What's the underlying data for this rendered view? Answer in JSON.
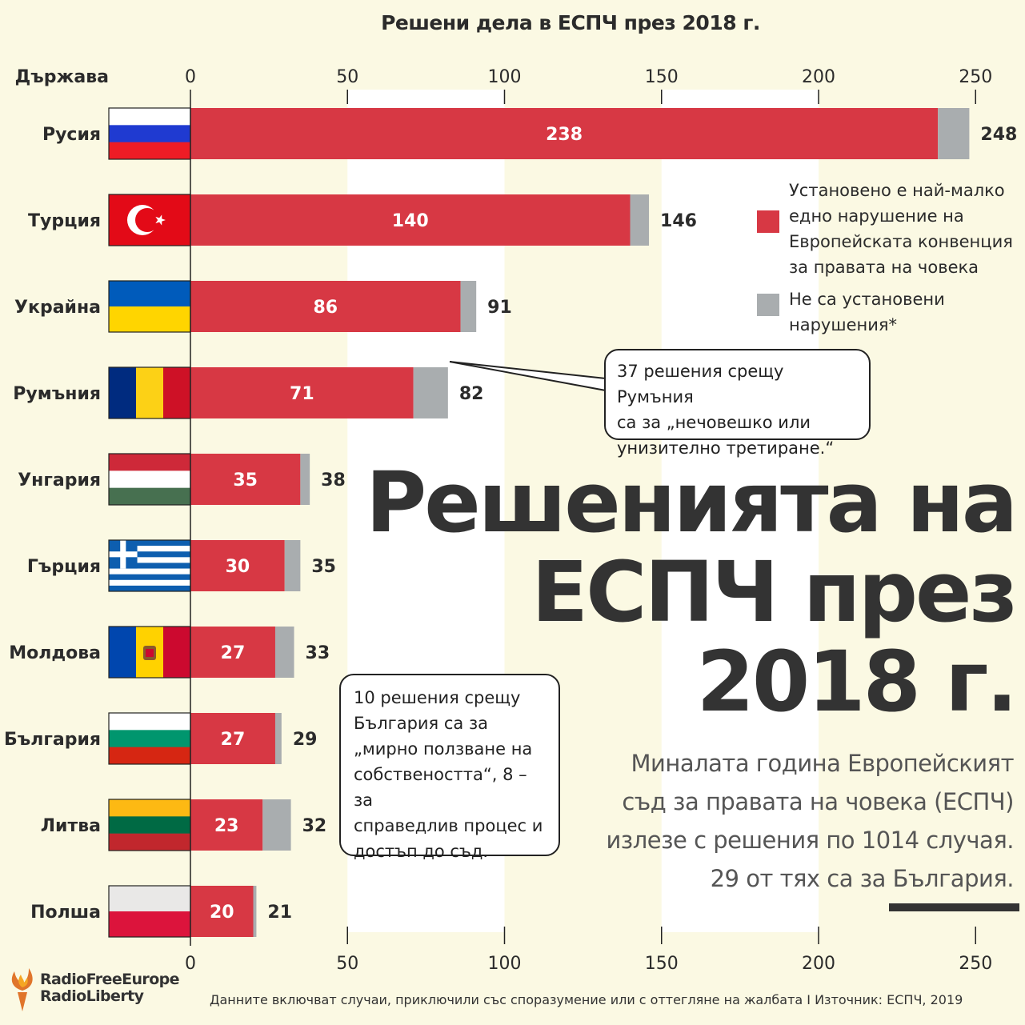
{
  "chart_data": {
    "type": "bar",
    "orientation": "horizontal",
    "stacked": true,
    "title": "Решени дела в ЕСПЧ през 2018 г.",
    "category_axis_label": "Държава",
    "categories": [
      "Русия",
      "Турция",
      "Украйна",
      "Румъния",
      "Унгария",
      "Гърция",
      "Молдова",
      "България",
      "Литва",
      "Полша"
    ],
    "series": [
      {
        "name": "Установено е най-малко едно нарушение на Европейската конвенция за правата на човека",
        "color": "#d73844",
        "values": [
          238,
          140,
          86,
          71,
          35,
          30,
          27,
          27,
          23,
          20
        ]
      },
      {
        "name": "Не са установени нарушения*",
        "color": "#a9adaf",
        "values": [
          10,
          6,
          5,
          11,
          3,
          5,
          6,
          2,
          9,
          1
        ]
      }
    ],
    "totals": [
      248,
      146,
      91,
      82,
      38,
      35,
      33,
      29,
      32,
      21
    ],
    "xlim": [
      0,
      250
    ],
    "xticks": [
      0,
      50,
      100,
      150,
      200,
      250
    ],
    "legend_position": "right",
    "flags": [
      "russia-flag",
      "turkey-flag",
      "ukraine-flag",
      "romania-flag",
      "hungary-flag",
      "greece-flag",
      "moldova-flag",
      "bulgaria-flag",
      "lithuania-flag",
      "poland-flag"
    ]
  },
  "headline_lines": [
    "Решенията на",
    "ЕСПЧ през",
    "2018 г."
  ],
  "subtitle_lines": [
    "Миналата година Европейският",
    "съд за правата на човека (ЕСПЧ)",
    "излезе с решения по 1014 случая.",
    "29 от тях са за България."
  ],
  "callouts": {
    "romania_lines": [
      "37 решения срещу Румъния",
      "са за „нечовешко или",
      "унизително третиране.“"
    ],
    "bulgaria_lines": [
      "10 решения срещу",
      "България са за",
      "„мирно ползване на",
      "собствеността“, 8 – за",
      "справедлив процес и",
      "достъп до съд."
    ]
  },
  "footnote": "Данните включват случаи, приключили със споразумение или с оттегляне на жалбата I Източник: ЕСПЧ, 2019",
  "logo": {
    "line1": "RadioFreeEurope",
    "line2": "RadioLiberty"
  },
  "colors": {
    "background": "#fbf9e3",
    "violation": "#d73844",
    "no_violation": "#a9adaf",
    "band": "#ffffff"
  }
}
